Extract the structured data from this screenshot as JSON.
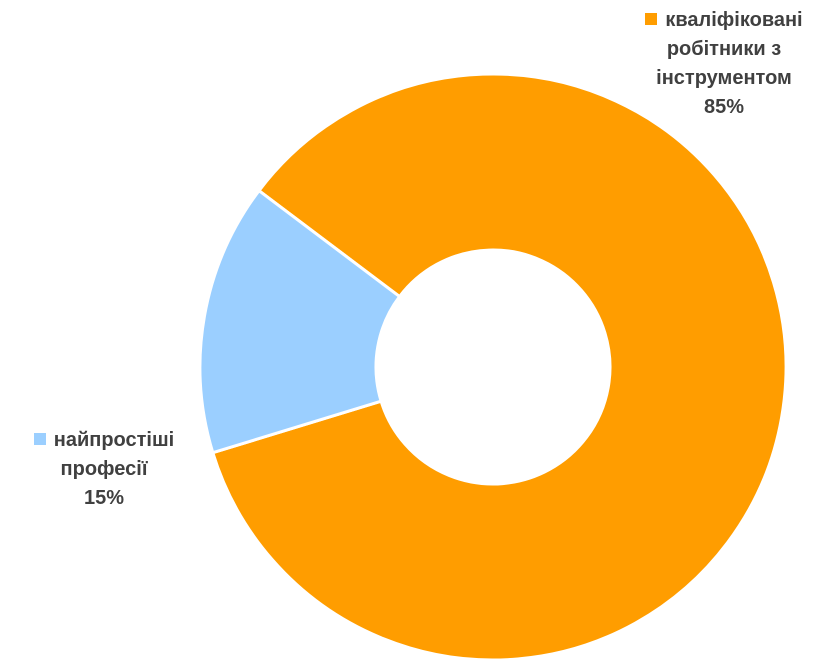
{
  "chart_data": {
    "type": "pie",
    "variant": "donut",
    "categories": [
      "кваліфіковані робітники з інструментом",
      "найпростіші професії"
    ],
    "values": [
      85,
      15
    ],
    "unit": "%",
    "colors": [
      "#FF9D00",
      "#9BCFFF"
    ],
    "legend": "none",
    "data_labels": [
      {
        "lines": [
          "кваліфіковані",
          "робітники з",
          "інструментом"
        ],
        "value": "85%"
      },
      {
        "lines": [
          "найпростіші",
          "професії"
        ],
        "value": "15%"
      }
    ]
  }
}
